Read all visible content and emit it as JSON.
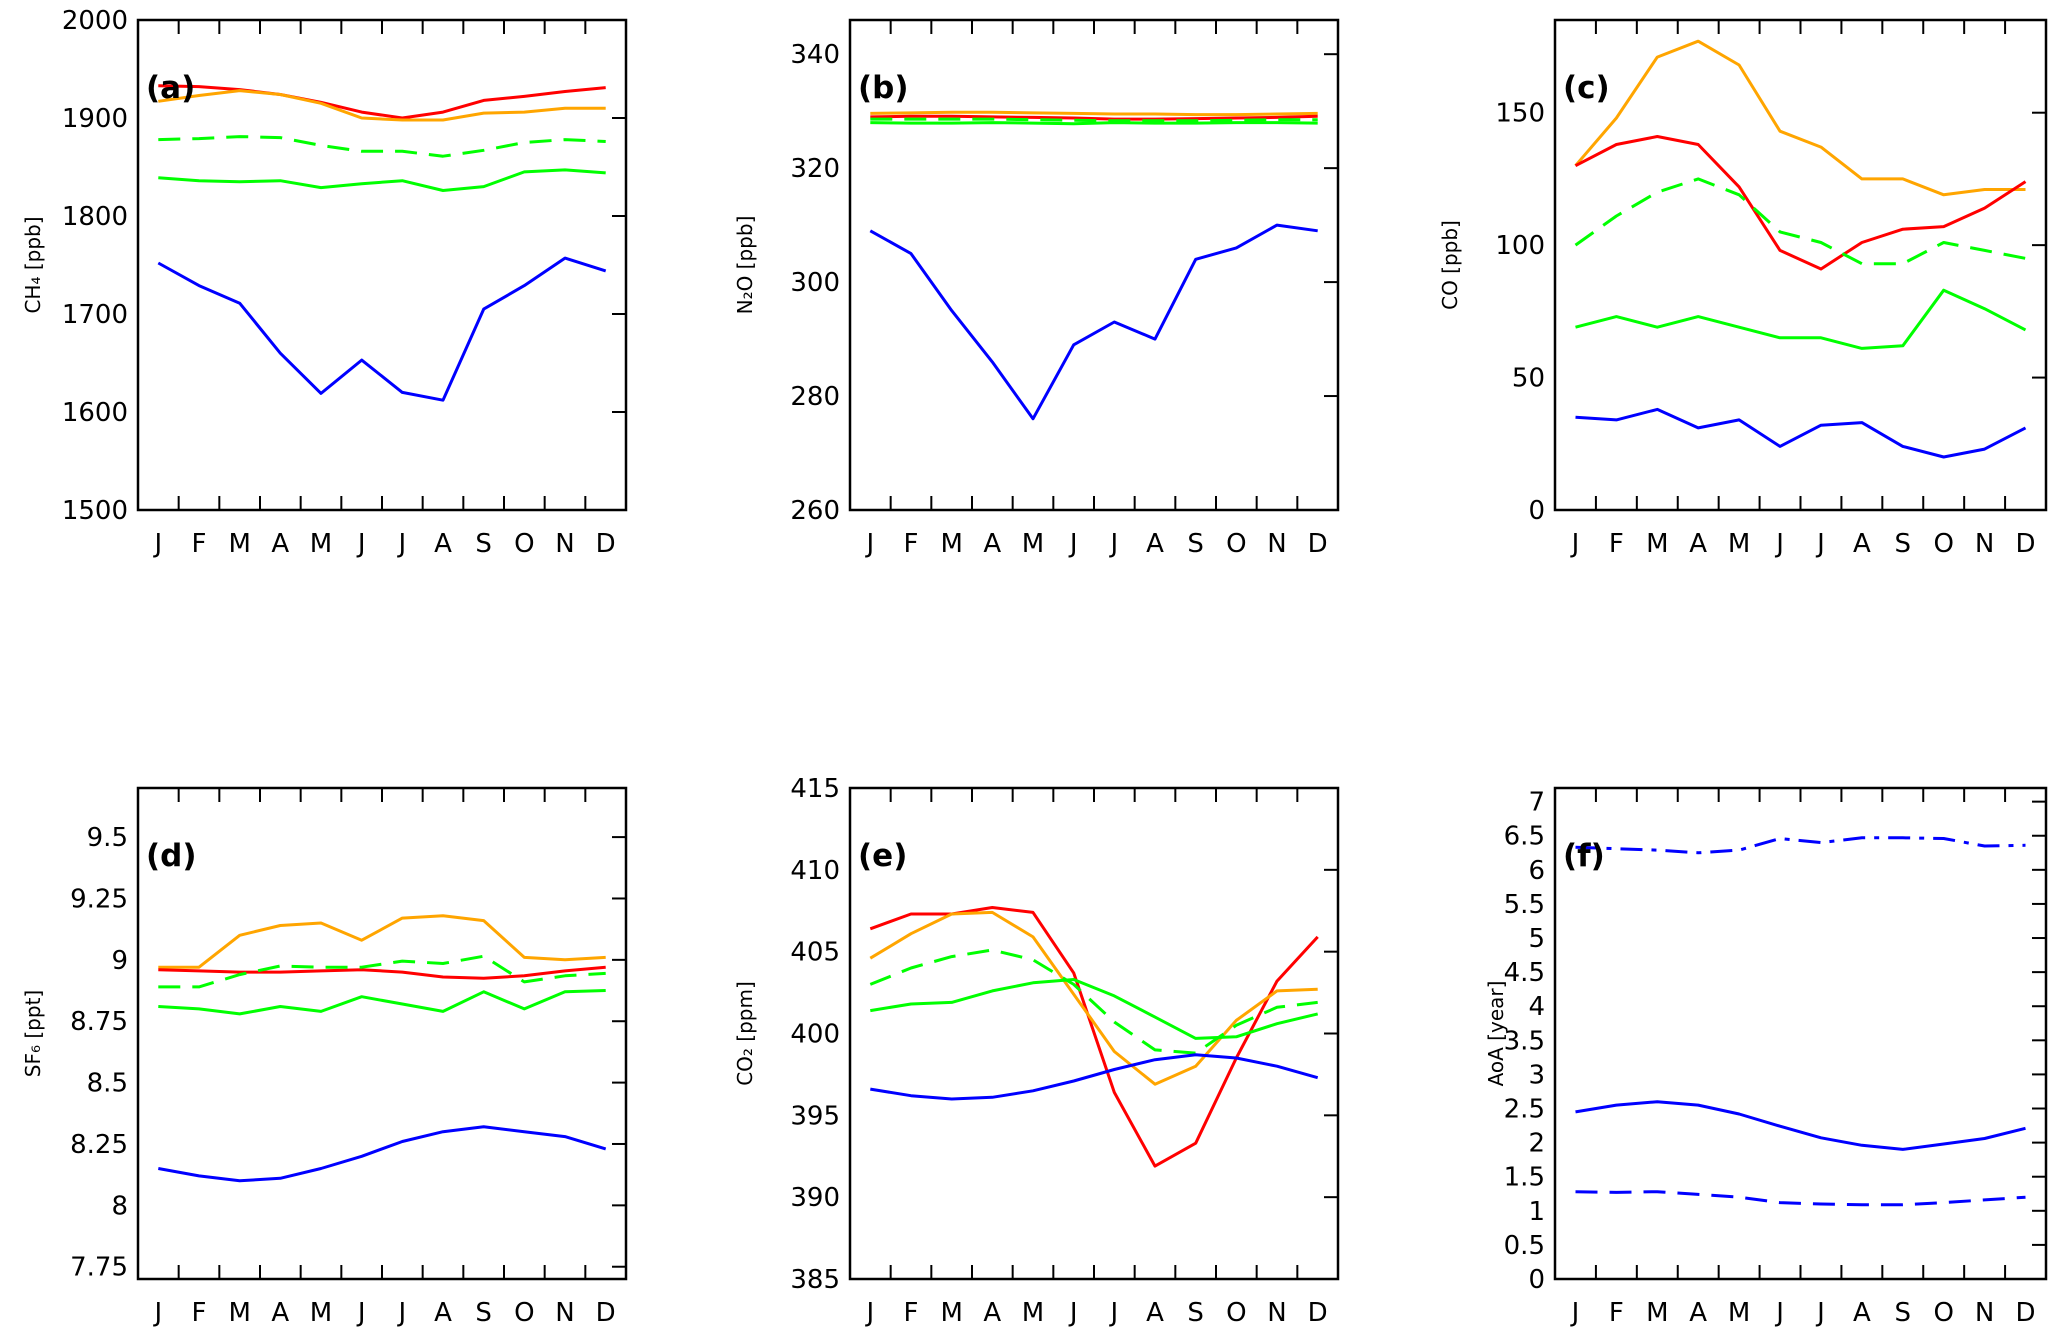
{
  "months": [
    "J",
    "F",
    "M",
    "A",
    "M",
    "J",
    "J",
    "A",
    "S",
    "O",
    "N",
    "D"
  ],
  "colors": {
    "red": "#ff0000",
    "orange": "#ffa500",
    "green": "#00ff00",
    "blue": "#0000ff"
  },
  "chart_data": [
    {
      "type": "line",
      "panel_label": "(a)",
      "ylabel": "CH₄ [ppb]",
      "ylim": [
        1500,
        2000
      ],
      "yticks": [
        1500,
        1600,
        1700,
        1800,
        1900,
        2000
      ],
      "ytick_labels": [
        "1500",
        "1600",
        "1700",
        "1800",
        "1900",
        "2000"
      ],
      "series": [
        {
          "color": "red",
          "style": "solid",
          "values": [
            1933,
            1932,
            1929,
            1924,
            1916,
            1906,
            1900,
            1906,
            1918,
            1922,
            1927,
            1931
          ]
        },
        {
          "color": "orange",
          "style": "solid",
          "values": [
            1917,
            1923,
            1928,
            1924,
            1915,
            1900,
            1898,
            1898,
            1905,
            1906,
            1910,
            1910
          ]
        },
        {
          "color": "green",
          "style": "dashed",
          "values": [
            1878,
            1879,
            1881,
            1880,
            1872,
            1866,
            1866,
            1861,
            1867,
            1875,
            1878,
            1876
          ]
        },
        {
          "color": "green",
          "style": "solid",
          "values": [
            1839,
            1836,
            1835,
            1836,
            1829,
            1833,
            1836,
            1826,
            1830,
            1845,
            1847,
            1844
          ]
        },
        {
          "color": "blue",
          "style": "solid",
          "values": [
            1752,
            1729,
            1711,
            1660,
            1619,
            1653,
            1620,
            1612,
            1705,
            1729,
            1757,
            1744
          ]
        }
      ]
    },
    {
      "type": "line",
      "panel_label": "(b)",
      "ylabel": "N₂O [ppb]",
      "ylim": [
        260,
        346
      ],
      "yticks": [
        260,
        280,
        300,
        320,
        340
      ],
      "ytick_labels": [
        "260",
        "280",
        "300",
        "320",
        "340"
      ],
      "series": [
        {
          "color": "orange",
          "style": "solid",
          "values": [
            329.6,
            329.7,
            329.8,
            329.8,
            329.7,
            329.6,
            329.5,
            329.5,
            329.4,
            329.4,
            329.5,
            329.6
          ]
        },
        {
          "color": "red",
          "style": "solid",
          "values": [
            329.0,
            329.1,
            329.1,
            329.0,
            328.9,
            328.8,
            328.6,
            328.6,
            328.7,
            328.8,
            328.9,
            329.1
          ]
        },
        {
          "color": "green",
          "style": "dashed",
          "values": [
            328.6,
            328.6,
            328.6,
            328.6,
            328.5,
            328.4,
            328.3,
            328.3,
            328.3,
            328.4,
            328.5,
            328.5
          ]
        },
        {
          "color": "green",
          "style": "solid",
          "values": [
            328.0,
            327.9,
            327.9,
            328.0,
            327.9,
            327.8,
            328.0,
            327.9,
            327.9,
            328.0,
            328.0,
            327.9
          ]
        },
        {
          "color": "blue",
          "style": "solid",
          "values": [
            309,
            305,
            295,
            286,
            276,
            289,
            293,
            290,
            304,
            306,
            310,
            309
          ]
        }
      ]
    },
    {
      "type": "line",
      "panel_label": "(c)",
      "ylabel": "CO [ppb]",
      "ylim": [
        0,
        185
      ],
      "yticks": [
        0,
        50,
        100,
        150
      ],
      "ytick_labels": [
        "0",
        "50",
        "100",
        "150"
      ],
      "series": [
        {
          "color": "orange",
          "style": "solid",
          "values": [
            130,
            148,
            171,
            177,
            168,
            143,
            137,
            125,
            125,
            119,
            121,
            121
          ]
        },
        {
          "color": "red",
          "style": "solid",
          "values": [
            130,
            138,
            141,
            138,
            122,
            98,
            91,
            101,
            106,
            107,
            114,
            124
          ]
        },
        {
          "color": "green",
          "style": "dashed",
          "values": [
            100,
            111,
            120,
            125,
            119,
            105,
            101,
            93,
            93,
            101,
            98,
            95
          ]
        },
        {
          "color": "green",
          "style": "solid",
          "values": [
            69,
            73,
            69,
            73,
            69,
            65,
            65,
            61,
            62,
            83,
            76,
            68
          ]
        },
        {
          "color": "blue",
          "style": "solid",
          "values": [
            35,
            34,
            38,
            31,
            34,
            24,
            32,
            33,
            24,
            20,
            23,
            31
          ]
        }
      ]
    },
    {
      "type": "line",
      "panel_label": "(d)",
      "ylabel": "SF₆ [ppt]",
      "ylim": [
        7.7,
        9.7
      ],
      "yticks": [
        7.75,
        8,
        8.25,
        8.5,
        8.75,
        9,
        9.25,
        9.5
      ],
      "ytick_labels": [
        "7.75",
        "8",
        "8.25",
        "8.5",
        "8.75",
        "9",
        "9.25",
        "9.5"
      ],
      "series": [
        {
          "color": "orange",
          "style": "solid",
          "values": [
            8.97,
            8.97,
            9.1,
            9.14,
            9.15,
            9.08,
            9.17,
            9.18,
            9.16,
            9.01,
            9.0,
            9.01
          ]
        },
        {
          "color": "red",
          "style": "solid",
          "values": [
            8.96,
            8.955,
            8.95,
            8.95,
            8.955,
            8.96,
            8.95,
            8.93,
            8.925,
            8.935,
            8.955,
            8.97
          ]
        },
        {
          "color": "green",
          "style": "dashed",
          "values": [
            8.89,
            8.89,
            8.94,
            8.975,
            8.97,
            8.97,
            8.995,
            8.985,
            9.015,
            8.91,
            8.935,
            8.945
          ]
        },
        {
          "color": "green",
          "style": "solid",
          "values": [
            8.81,
            8.8,
            8.78,
            8.81,
            8.79,
            8.85,
            8.82,
            8.79,
            8.87,
            8.8,
            8.87,
            8.875
          ]
        },
        {
          "color": "blue",
          "style": "solid",
          "values": [
            8.15,
            8.12,
            8.1,
            8.11,
            8.15,
            8.2,
            8.26,
            8.3,
            8.32,
            8.3,
            8.28,
            8.23
          ]
        }
      ]
    },
    {
      "type": "line",
      "panel_label": "(e)",
      "ylabel": "CO₂ [ppm]",
      "ylim": [
        385,
        415
      ],
      "yticks": [
        385,
        390,
        395,
        400,
        405,
        410,
        415
      ],
      "ytick_labels": [
        "385",
        "390",
        "395",
        "400",
        "405",
        "410",
        "415"
      ],
      "series": [
        {
          "color": "red",
          "style": "solid",
          "values": [
            406.4,
            407.3,
            407.3,
            407.7,
            407.4,
            403.7,
            396.4,
            391.9,
            393.3,
            398.5,
            403.2,
            405.9
          ]
        },
        {
          "color": "orange",
          "style": "solid",
          "values": [
            404.6,
            406.1,
            407.3,
            407.4,
            405.9,
            402.4,
            398.9,
            396.9,
            398.0,
            400.8,
            402.6,
            402.7
          ]
        },
        {
          "color": "green",
          "style": "dashed",
          "values": [
            403.0,
            404.0,
            404.7,
            405.1,
            404.5,
            403.0,
            400.7,
            399.0,
            398.8,
            400.5,
            401.6,
            401.9
          ]
        },
        {
          "color": "green",
          "style": "solid",
          "values": [
            401.4,
            401.8,
            401.9,
            402.6,
            403.1,
            403.3,
            402.3,
            401.0,
            399.7,
            399.8,
            400.6,
            401.2
          ]
        },
        {
          "color": "blue",
          "style": "solid",
          "values": [
            396.6,
            396.2,
            396.0,
            396.1,
            396.5,
            397.1,
            397.8,
            398.4,
            398.7,
            398.5,
            398.0,
            397.3
          ]
        }
      ]
    },
    {
      "type": "line",
      "panel_label": "(f)",
      "ylabel": "AoA [year]",
      "ylim": [
        0,
        7.2
      ],
      "yticks": [
        0,
        0.5,
        1,
        1.5,
        2,
        2.5,
        3,
        3.5,
        4,
        4.5,
        5,
        5.5,
        6,
        6.5,
        7
      ],
      "ytick_labels": [
        "0",
        "0.5",
        "1",
        "1.5",
        "2",
        "2.5",
        "3",
        "3.5",
        "4",
        "4.5",
        "5",
        "5.5",
        "6",
        "6.5",
        "7"
      ],
      "series": [
        {
          "color": "blue",
          "style": "dashdot",
          "values": [
            6.33,
            6.31,
            6.29,
            6.25,
            6.29,
            6.46,
            6.4,
            6.47,
            6.47,
            6.46,
            6.35,
            6.36
          ]
        },
        {
          "color": "blue",
          "style": "solid",
          "values": [
            2.45,
            2.55,
            2.6,
            2.55,
            2.42,
            2.24,
            2.07,
            1.96,
            1.9,
            1.98,
            2.06,
            2.21
          ]
        },
        {
          "color": "blue",
          "style": "dashed",
          "values": [
            1.28,
            1.27,
            1.28,
            1.24,
            1.2,
            1.12,
            1.1,
            1.09,
            1.09,
            1.12,
            1.16,
            1.2
          ]
        }
      ]
    }
  ]
}
